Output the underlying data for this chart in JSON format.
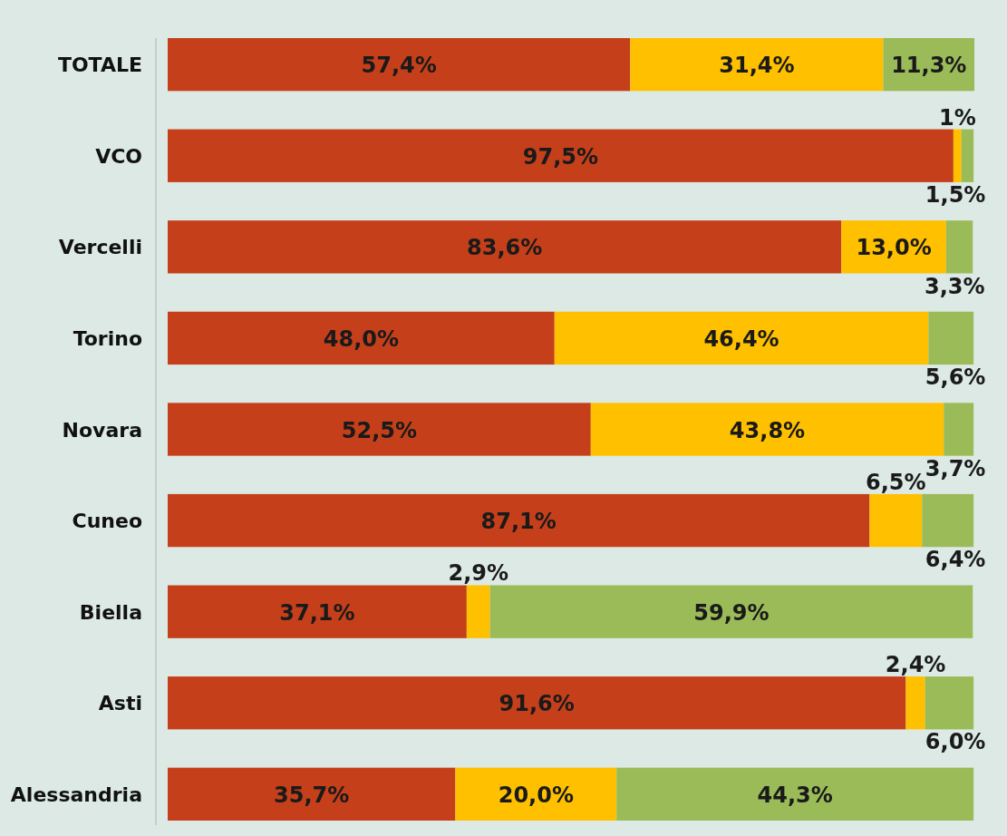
{
  "chart_data": {
    "type": "bar",
    "orientation": "horizontal",
    "stacked": true,
    "categories": [
      "TOTALE",
      "VCO",
      "Vercelli",
      "Torino",
      "Novara",
      "Cuneo",
      "Biella",
      "Asti",
      "Alessandria"
    ],
    "series": [
      {
        "color": "#c5401a",
        "values": [
          57.4,
          97.5,
          83.6,
          48.0,
          52.5,
          87.1,
          37.1,
          91.6,
          35.7
        ],
        "value_labels": [
          "57,4%",
          "97,5%",
          "83,6%",
          "48,0%",
          "52,5%",
          "87,1%",
          "37,1%",
          "91,6%",
          "35,7%"
        ]
      },
      {
        "color": "#ffc000",
        "values": [
          31.4,
          1,
          13.0,
          46.4,
          43.8,
          6.5,
          2.9,
          2.4,
          20.0
        ],
        "value_labels": [
          "31,4%",
          "1%",
          "13,0%",
          "46,4%",
          "43,8%",
          "6,5%",
          "2,9%",
          "2,4%",
          "20,0%"
        ]
      },
      {
        "color": "#9bbb59",
        "values": [
          11.3,
          1.5,
          3.3,
          5.6,
          3.7,
          6.4,
          59.9,
          6.0,
          44.3
        ],
        "value_labels": [
          "11,3%",
          "1,5%",
          "3,3%",
          "5,6%",
          "3,7%",
          "6,4%",
          "59,9%",
          "6,0%",
          "44,3%"
        ]
      }
    ],
    "tick_labels": "y"
  }
}
